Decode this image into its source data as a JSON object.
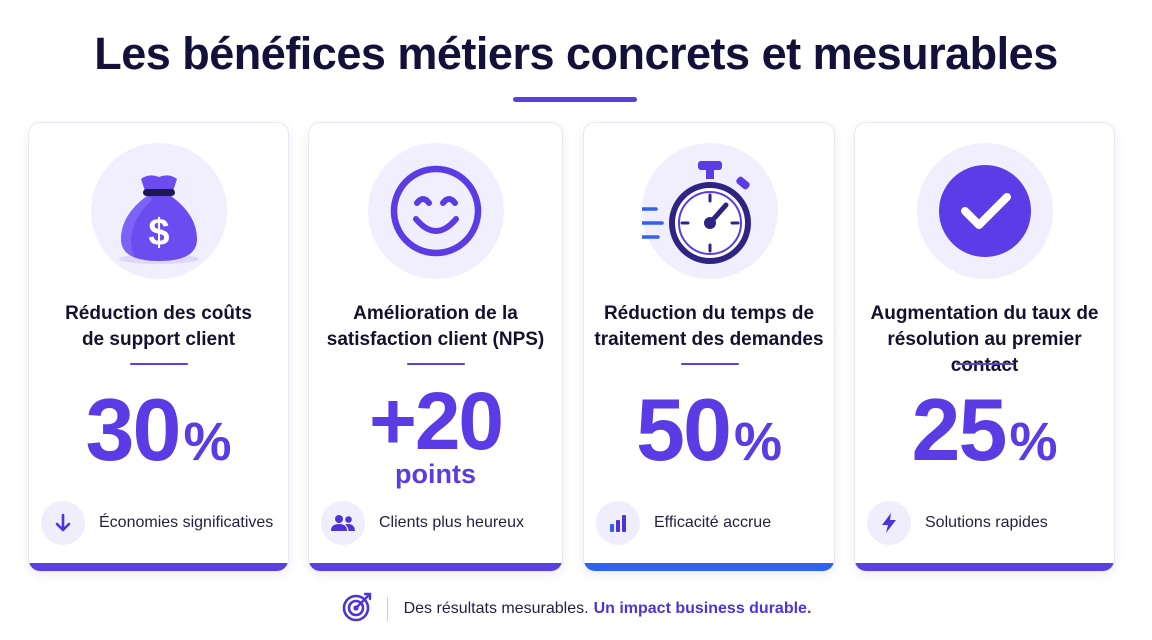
{
  "title": "Les bénéfices métiers concrets et mesurables",
  "colors": {
    "accent": "#5a3be4",
    "accent_blue": "#2f63ee",
    "title": "#13103a",
    "icon_bg": "#f1effd"
  },
  "cards": [
    {
      "icon": "money-bag-icon",
      "title_line1": "Réduction des coûts",
      "title_line2": "de support client",
      "value": "30",
      "unit": "%",
      "feature_icon": "arrow-down-icon",
      "feature_text": "Économies significatives"
    },
    {
      "icon": "smiley-icon",
      "title_line1": "Amélioration de la",
      "title_line2": "satisfaction client (NPS)",
      "value": "+20",
      "unit": "points",
      "feature_icon": "users-icon",
      "feature_text": "Clients plus heureux"
    },
    {
      "icon": "stopwatch-icon",
      "title_line1": "Réduction du temps de",
      "title_line2": "traitement des demandes",
      "value": "50",
      "unit": "%",
      "feature_icon": "bar-chart-icon",
      "feature_text": "Efficacité accrue"
    },
    {
      "icon": "checkmark-icon",
      "title_line1": "Augmentation du taux de",
      "title_line2": "résolution au premier contact",
      "value": "25",
      "unit": "%",
      "feature_icon": "lightning-icon",
      "feature_text": "Solutions rapides"
    }
  ],
  "footer": {
    "icon": "target-icon",
    "text": "Des résultats mesurables.",
    "highlight": "Un impact business durable."
  }
}
